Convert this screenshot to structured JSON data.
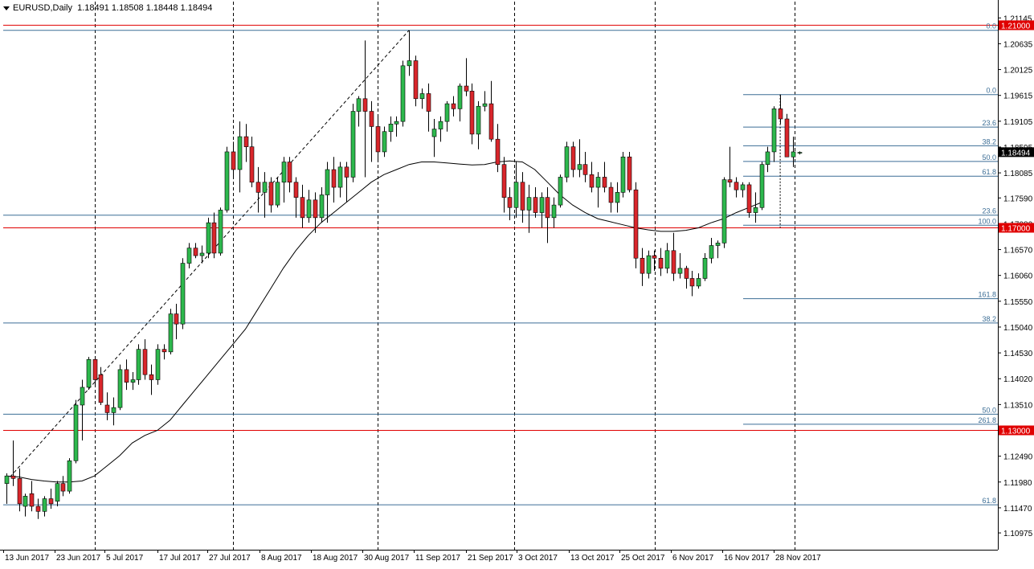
{
  "header": {
    "symbol": "EURUSD",
    "timeframe": "Daily",
    "ohlc": "1.18491 1.18508 1.18448 1.18494",
    "menu_icon": "triangle-down-icon"
  },
  "chart_data": {
    "type": "candlestick",
    "title": "EURUSD,Daily",
    "ylim": [
      1.1077,
      1.2134
    ],
    "y_ticks": [
      "1.21145",
      "1.20635",
      "1.20125",
      "1.19615",
      "1.19105",
      "1.18595",
      "1.18085",
      "1.17590",
      "1.17080",
      "1.16570",
      "1.16060",
      "1.15550",
      "1.15040",
      "1.14530",
      "1.14020",
      "1.13510",
      "1.13000",
      "1.12490",
      "1.11980",
      "1.11470",
      "1.10975"
    ],
    "x_labels": [
      "13 Jun 2017",
      "23 Jun 2017",
      "5 Jul 2017",
      "17 Jul 2017",
      "27 Jul 2017",
      "8 Aug 2017",
      "18 Aug 2017",
      "30 Aug 2017",
      "11 Sep 2017",
      "21 Sep 2017",
      "3 Oct 2017",
      "13 Oct 2017",
      "25 Oct 2017",
      "6 Nov 2017",
      "16 Nov 2017",
      "28 Nov 2017"
    ],
    "current_price": "1.18494",
    "price_levels": [
      {
        "value": 1.21,
        "label": "1.21000"
      },
      {
        "value": 1.17,
        "label": "1.17000"
      },
      {
        "value": 1.13,
        "label": "1.13000"
      }
    ],
    "fib_retracement_1": [
      {
        "value": 1.209,
        "label": "0.0"
      },
      {
        "value": 1.1725,
        "label": "23.6"
      },
      {
        "value": 1.1512,
        "label": "38.2"
      },
      {
        "value": 1.1332,
        "label": "50.0"
      },
      {
        "value": 1.1153,
        "label": "61.8"
      }
    ],
    "fib_extension_2": [
      {
        "value": 1.1963,
        "label": "0.0"
      },
      {
        "value": 1.1899,
        "label": "23.6"
      },
      {
        "value": 1.1862,
        "label": "38.2"
      },
      {
        "value": 1.1831,
        "label": "50.0"
      },
      {
        "value": 1.1802,
        "label": "61.8"
      },
      {
        "value": 1.1705,
        "label": "100.0"
      },
      {
        "value": 1.156,
        "label": "161.8"
      },
      {
        "value": 1.1312,
        "label": "261.8"
      }
    ],
    "candles": [
      [
        1.1195,
        1.1215,
        1.1155,
        1.121
      ],
      [
        1.121,
        1.128,
        1.119,
        1.1205
      ],
      [
        1.1205,
        1.1225,
        1.114,
        1.1155
      ],
      [
        1.115,
        1.1175,
        1.113,
        1.117
      ],
      [
        1.1175,
        1.12,
        1.114,
        1.115
      ],
      [
        1.115,
        1.1165,
        1.1125,
        1.114
      ],
      [
        1.114,
        1.117,
        1.113,
        1.1165
      ],
      [
        1.1165,
        1.1185,
        1.1145,
        1.1155
      ],
      [
        1.116,
        1.12,
        1.115,
        1.1195
      ],
      [
        1.1195,
        1.121,
        1.117,
        1.118
      ],
      [
        1.118,
        1.1245,
        1.1175,
        1.124
      ],
      [
        1.124,
        1.136,
        1.1235,
        1.135
      ],
      [
        1.135,
        1.14,
        1.128,
        1.1385
      ],
      [
        1.1385,
        1.1445,
        1.138,
        1.144
      ],
      [
        1.144,
        1.1445,
        1.1385,
        1.14
      ],
      [
        1.141,
        1.1425,
        1.135,
        1.1355
      ],
      [
        1.135,
        1.1375,
        1.132,
        1.1335
      ],
      [
        1.1335,
        1.1365,
        1.131,
        1.1345
      ],
      [
        1.1345,
        1.143,
        1.134,
        1.142
      ],
      [
        1.142,
        1.144,
        1.138,
        1.1395
      ],
      [
        1.1395,
        1.1415,
        1.138,
        1.14
      ],
      [
        1.14,
        1.147,
        1.139,
        1.146
      ],
      [
        1.146,
        1.148,
        1.14,
        1.141
      ],
      [
        1.141,
        1.143,
        1.137,
        1.14
      ],
      [
        1.14,
        1.147,
        1.139,
        1.146
      ],
      [
        1.146,
        1.147,
        1.144,
        1.1455
      ],
      [
        1.1455,
        1.154,
        1.145,
        1.153
      ],
      [
        1.153,
        1.155,
        1.148,
        1.151
      ],
      [
        1.151,
        1.164,
        1.15,
        1.163
      ],
      [
        1.163,
        1.167,
        1.162,
        1.166
      ],
      [
        1.166,
        1.167,
        1.164,
        1.1645
      ],
      [
        1.1645,
        1.1665,
        1.163,
        1.165
      ],
      [
        1.165,
        1.172,
        1.164,
        1.171
      ],
      [
        1.171,
        1.173,
        1.164,
        1.165
      ],
      [
        1.165,
        1.174,
        1.1645,
        1.1735
      ],
      [
        1.1735,
        1.186,
        1.173,
        1.185
      ],
      [
        1.185,
        1.187,
        1.18,
        1.1815
      ],
      [
        1.1815,
        1.191,
        1.177,
        1.188
      ],
      [
        1.188,
        1.1905,
        1.183,
        1.186
      ],
      [
        1.186,
        1.188,
        1.178,
        1.179
      ],
      [
        1.179,
        1.182,
        1.173,
        1.177
      ],
      [
        1.177,
        1.181,
        1.172,
        1.179
      ],
      [
        1.179,
        1.18,
        1.173,
        1.1745
      ],
      [
        1.1745,
        1.18,
        1.174,
        1.179
      ],
      [
        1.179,
        1.184,
        1.175,
        1.183
      ],
      [
        1.183,
        1.184,
        1.177,
        1.179
      ],
      [
        1.179,
        1.18,
        1.172,
        1.176
      ],
      [
        1.176,
        1.1785,
        1.17,
        1.172
      ],
      [
        1.172,
        1.1775,
        1.171,
        1.1755
      ],
      [
        1.1755,
        1.177,
        1.169,
        1.172
      ],
      [
        1.172,
        1.178,
        1.171,
        1.1765
      ],
      [
        1.1765,
        1.183,
        1.171,
        1.1815
      ],
      [
        1.1815,
        1.184,
        1.175,
        1.178
      ],
      [
        1.178,
        1.183,
        1.176,
        1.182
      ],
      [
        1.182,
        1.183,
        1.175,
        1.18
      ],
      [
        1.18,
        1.1945,
        1.179,
        1.193
      ],
      [
        1.193,
        1.196,
        1.19,
        1.1955
      ],
      [
        1.1955,
        1.207,
        1.18,
        1.193
      ],
      [
        1.193,
        1.195,
        1.183,
        1.19
      ],
      [
        1.19,
        1.192,
        1.183,
        1.185
      ],
      [
        1.185,
        1.19,
        1.184,
        1.189
      ],
      [
        1.189,
        1.192,
        1.187,
        1.1905
      ],
      [
        1.1905,
        1.192,
        1.188,
        1.191
      ],
      [
        1.191,
        1.203,
        1.19,
        1.202
      ],
      [
        1.202,
        1.209,
        1.2,
        1.203
      ],
      [
        1.203,
        1.204,
        1.194,
        1.1955
      ],
      [
        1.1955,
        1.1975,
        1.1935,
        1.1965
      ],
      [
        1.1965,
        1.1985,
        1.189,
        1.193
      ],
      [
        1.188,
        1.1915,
        1.184,
        1.1895
      ],
      [
        1.1895,
        1.192,
        1.187,
        1.191
      ],
      [
        1.191,
        1.195,
        1.189,
        1.1945
      ],
      [
        1.1945,
        1.196,
        1.192,
        1.1935
      ],
      [
        1.1935,
        1.1985,
        1.191,
        1.198
      ],
      [
        1.198,
        1.2035,
        1.196,
        1.197
      ],
      [
        1.197,
        1.1985,
        1.1865,
        1.1885
      ],
      [
        1.1885,
        1.195,
        1.1855,
        1.194
      ],
      [
        1.194,
        1.197,
        1.193,
        1.1945
      ],
      [
        1.1945,
        1.199,
        1.187,
        1.1875
      ],
      [
        1.1875,
        1.1905,
        1.181,
        1.1825
      ],
      [
        1.1825,
        1.184,
        1.173,
        1.176
      ],
      [
        1.176,
        1.178,
        1.1715,
        1.174
      ],
      [
        1.174,
        1.183,
        1.172,
        1.179
      ],
      [
        1.179,
        1.181,
        1.171,
        1.1735
      ],
      [
        1.1735,
        1.1785,
        1.169,
        1.176
      ],
      [
        1.176,
        1.178,
        1.172,
        1.173
      ],
      [
        1.173,
        1.177,
        1.17,
        1.176
      ],
      [
        1.176,
        1.178,
        1.167,
        1.172
      ],
      [
        1.172,
        1.176,
        1.17,
        1.1745
      ],
      [
        1.1745,
        1.1805,
        1.174,
        1.18
      ],
      [
        1.18,
        1.187,
        1.179,
        1.186
      ],
      [
        1.186,
        1.187,
        1.18,
        1.1815
      ],
      [
        1.1815,
        1.1875,
        1.18,
        1.1825
      ],
      [
        1.1825,
        1.185,
        1.179,
        1.1805
      ],
      [
        1.1805,
        1.183,
        1.177,
        1.178
      ],
      [
        1.178,
        1.181,
        1.174,
        1.18
      ],
      [
        1.18,
        1.183,
        1.177,
        1.178
      ],
      [
        1.178,
        1.179,
        1.173,
        1.175
      ],
      [
        1.175,
        1.179,
        1.173,
        1.177
      ],
      [
        1.177,
        1.185,
        1.176,
        1.184
      ],
      [
        1.184,
        1.185,
        1.177,
        1.1775
      ],
      [
        1.1775,
        1.179,
        1.162,
        1.164
      ],
      [
        1.164,
        1.166,
        1.1585,
        1.161
      ],
      [
        1.161,
        1.1655,
        1.16,
        1.1645
      ],
      [
        1.1645,
        1.1655,
        1.1615,
        1.164
      ],
      [
        1.164,
        1.166,
        1.1605,
        1.162
      ],
      [
        1.162,
        1.167,
        1.161,
        1.1655
      ],
      [
        1.1655,
        1.169,
        1.1595,
        1.161
      ],
      [
        1.161,
        1.165,
        1.16,
        1.162
      ],
      [
        1.162,
        1.1625,
        1.158,
        1.16
      ],
      [
        1.16,
        1.1615,
        1.1565,
        1.1585
      ],
      [
        1.1585,
        1.161,
        1.158,
        1.16
      ],
      [
        1.16,
        1.165,
        1.1595,
        1.164
      ],
      [
        1.164,
        1.168,
        1.163,
        1.1665
      ],
      [
        1.1665,
        1.1675,
        1.164,
        1.167
      ],
      [
        1.167,
        1.18,
        1.166,
        1.1795
      ],
      [
        1.1795,
        1.186,
        1.178,
        1.179
      ],
      [
        1.179,
        1.18,
        1.176,
        1.1775
      ],
      [
        1.1775,
        1.179,
        1.176,
        1.1785
      ],
      [
        1.1785,
        1.179,
        1.172,
        1.173
      ],
      [
        1.173,
        1.177,
        1.171,
        1.174
      ],
      [
        1.174,
        1.183,
        1.1735,
        1.1825
      ],
      [
        1.1825,
        1.186,
        1.181,
        1.185
      ],
      [
        1.185,
        1.194,
        1.183,
        1.1935
      ],
      [
        1.1935,
        1.1963,
        1.1905,
        1.1915
      ],
      [
        1.1915,
        1.1925,
        1.185,
        1.184
      ],
      [
        1.184,
        1.188,
        1.182,
        1.185
      ],
      [
        1.1849,
        1.1851,
        1.1845,
        1.1849
      ]
    ],
    "ma": [
      1.121,
      1.1208,
      1.1203,
      1.12,
      1.1198,
      1.1198,
      1.12,
      1.121,
      1.123,
      1.125,
      1.1275,
      1.129,
      1.13,
      1.132,
      1.135,
      1.138,
      1.141,
      1.144,
      1.147,
      1.15,
      1.154,
      1.158,
      1.162,
      1.1655,
      1.1685,
      1.171,
      1.173,
      1.175,
      1.177,
      1.179,
      1.1805,
      1.1815,
      1.1825,
      1.183,
      1.183,
      1.1828,
      1.1826,
      1.1824,
      1.1825,
      1.183,
      1.1832,
      1.183,
      1.1815,
      1.179,
      1.1765,
      1.1745,
      1.173,
      1.1718,
      1.1712,
      1.1706,
      1.17,
      1.1696,
      1.1693,
      1.1693,
      1.1695,
      1.17,
      1.171,
      1.1718,
      1.173,
      1.174,
      1.175
    ],
    "ma_start_index": 0,
    "ma_step": 2
  }
}
